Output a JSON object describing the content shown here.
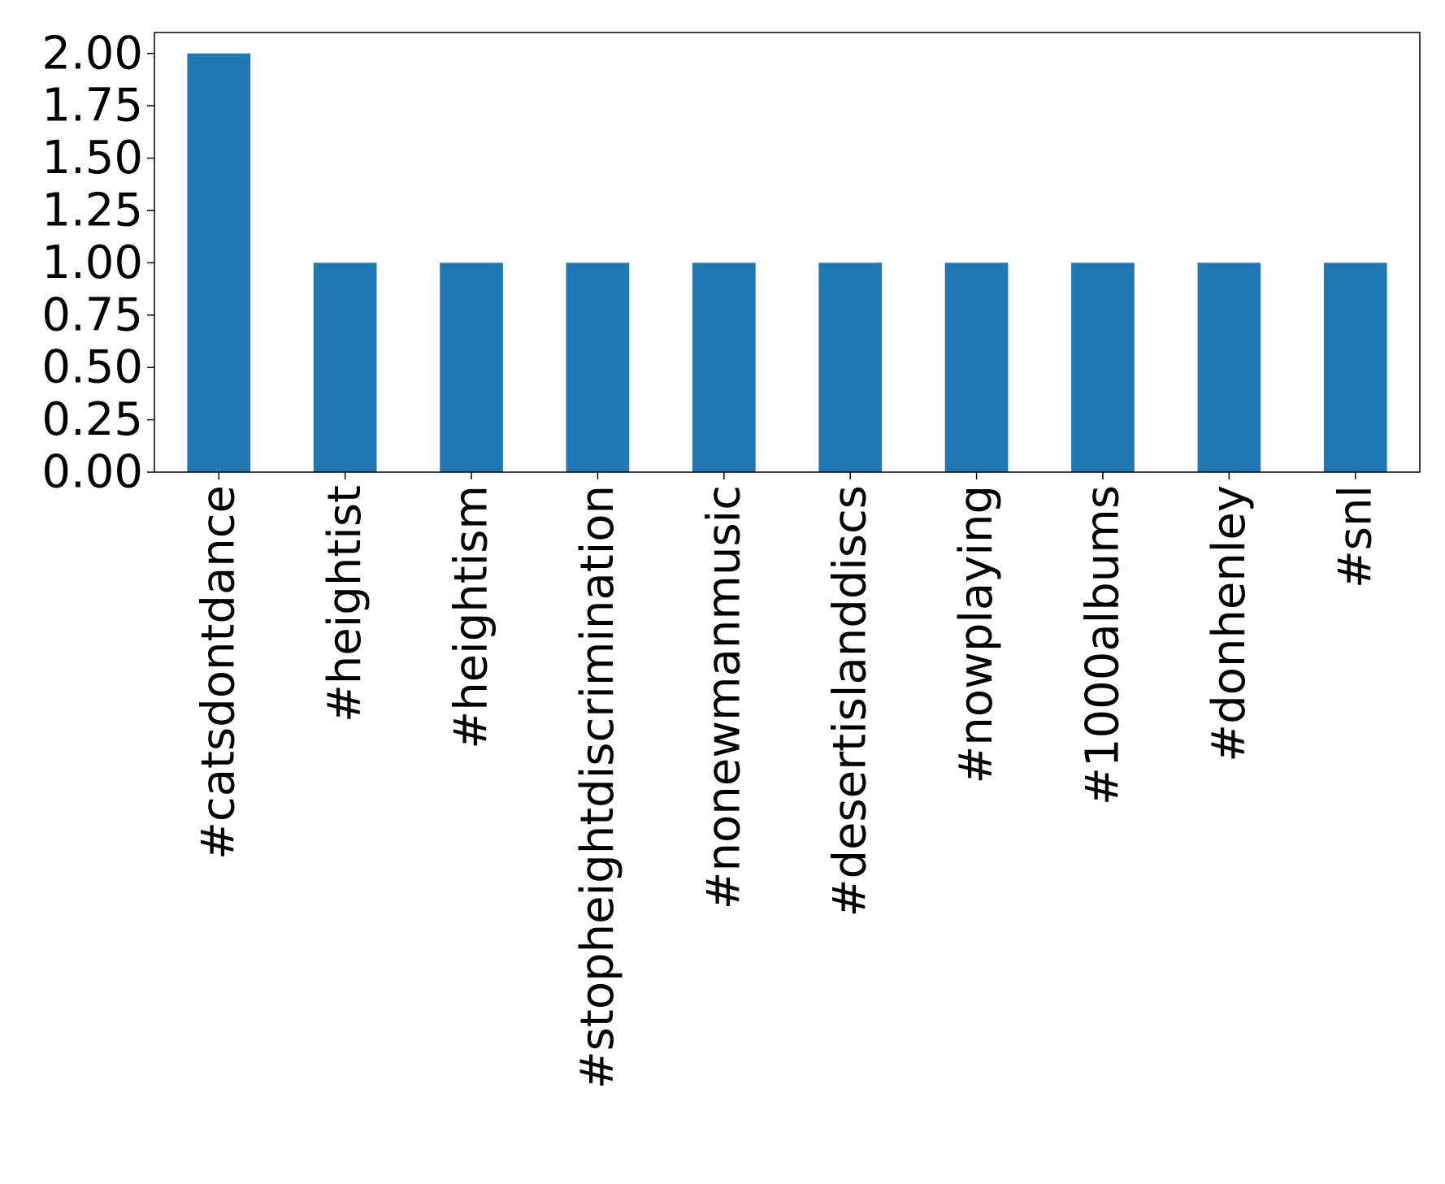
{
  "chart_data": {
    "type": "bar",
    "title": "",
    "xlabel": "",
    "ylabel": "",
    "categories": [
      "#catsdontdance",
      "#heightist",
      "#heightism",
      "#stopheightdiscrimination",
      "#nonewmanmusic",
      "#desertislanddiscs",
      "#nowplaying",
      "#1000albums",
      "#donhenley",
      "#snl"
    ],
    "values": [
      2,
      1,
      1,
      1,
      1,
      1,
      1,
      1,
      1,
      1
    ],
    "ylim": [
      0,
      2.1
    ],
    "yticks": [
      "0.00",
      "0.25",
      "0.50",
      "0.75",
      "1.00",
      "1.25",
      "1.50",
      "1.75",
      "2.00"
    ],
    "ytick_values": [
      0,
      0.25,
      0.5,
      0.75,
      1.0,
      1.25,
      1.5,
      1.75,
      2.0
    ],
    "bar_color": "#1f77b4",
    "grid": false,
    "legend": "none"
  }
}
